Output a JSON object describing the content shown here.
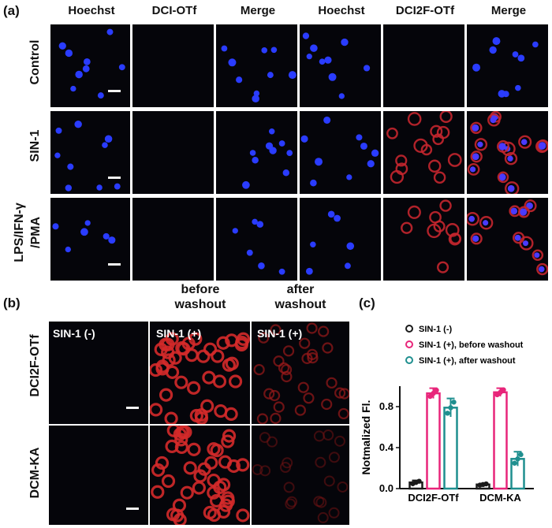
{
  "panel_a": {
    "letter": "(a)",
    "columns": [
      "Hoechst",
      "DCI-OTf",
      "Merge",
      "Hoechst",
      "DCI2F-OTf",
      "Merge"
    ],
    "rows": [
      {
        "label": "Control"
      },
      {
        "label": "SIN-1"
      },
      {
        "label_line1": "LPS/IFN-γ",
        "label_line2": "/PMA"
      }
    ]
  },
  "panel_b": {
    "letter": "(b)",
    "col_head_before": "before washout",
    "col_head_before_l1": "before",
    "col_head_before_l2": "washout",
    "col_head_after_l1": "after",
    "col_head_after_l2": "washout",
    "tile_labels": [
      "SIN-1 (-)",
      "SIN-1 (+)",
      "SIN-1 (+)"
    ],
    "rows": [
      "DCI2F-OTf",
      "DCM-KA"
    ]
  },
  "panel_c": {
    "letter": "(c)"
  },
  "chart_data": {
    "type": "bar",
    "categories": [
      "DCI2F-OTf",
      "DCM-KA"
    ],
    "ylabel": "Notmalized Fl.",
    "ylim": [
      0,
      1.0
    ],
    "yticks": [
      "0.0",
      "0.4",
      "0.8"
    ],
    "series": [
      {
        "name": "SIN-1 (-)",
        "color": "#1a1a1a",
        "values": [
          0.06,
          0.04
        ],
        "errors": [
          0.02,
          0.01
        ]
      },
      {
        "name": "SIN-1 (+), before washout",
        "color": "#e8257a",
        "values": [
          0.93,
          0.94
        ],
        "errors": [
          0.05,
          0.04
        ]
      },
      {
        "name": "SIN-1 (+), after washout",
        "color": "#1f8f8f",
        "values": [
          0.79,
          0.29
        ],
        "errors": [
          0.09,
          0.07
        ]
      }
    ],
    "legend_position": "top-right"
  }
}
